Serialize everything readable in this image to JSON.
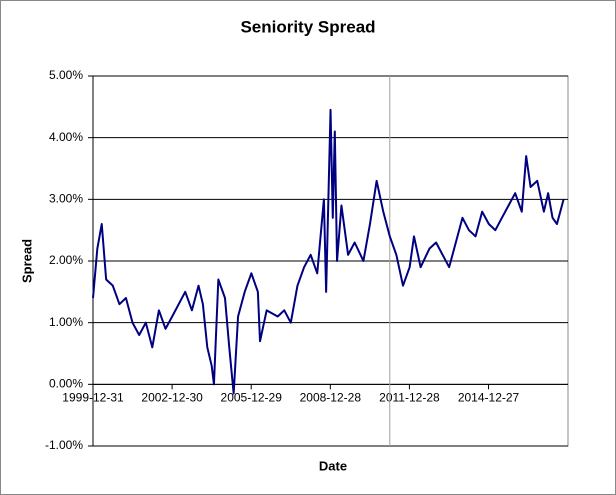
{
  "chart_data": {
    "type": "line",
    "title": "Seniority Spread",
    "x_label": "Date",
    "y_label": "Spread",
    "x": [
      "1999-12-31",
      "2000-02-29",
      "2000-04-30",
      "2000-06-30",
      "2000-09-30",
      "2000-12-31",
      "2001-03-31",
      "2001-06-30",
      "2001-09-30",
      "2001-12-31",
      "2002-03-31",
      "2002-06-30",
      "2002-09-30",
      "2002-12-31",
      "2003-03-31",
      "2003-06-30",
      "2003-09-30",
      "2003-12-31",
      "2004-02-29",
      "2004-04-30",
      "2004-06-30",
      "2004-07-31",
      "2004-09-30",
      "2004-12-31",
      "2005-02-28",
      "2005-04-30",
      "2005-06-30",
      "2005-09-30",
      "2005-12-31",
      "2006-03-31",
      "2006-04-30",
      "2006-07-31",
      "2006-12-31",
      "2007-03-31",
      "2007-06-30",
      "2007-09-30",
      "2007-12-31",
      "2008-03-31",
      "2008-06-30",
      "2008-09-30",
      "2008-10-31",
      "2008-12-31",
      "2009-01-31",
      "2009-02-28",
      "2009-03-31",
      "2009-05-31",
      "2009-08-31",
      "2009-11-30",
      "2010-03-31",
      "2010-06-30",
      "2010-09-30",
      "2010-12-31",
      "2011-03-31",
      "2011-06-30",
      "2011-09-30",
      "2011-12-31",
      "2012-02-29",
      "2012-05-31",
      "2012-09-30",
      "2012-12-31",
      "2013-03-31",
      "2013-06-30",
      "2013-09-30",
      "2013-12-31",
      "2014-03-31",
      "2014-06-30",
      "2014-09-30",
      "2014-12-31",
      "2015-03-31",
      "2015-06-30",
      "2015-09-30",
      "2015-12-31",
      "2016-03-31",
      "2016-05-31",
      "2016-07-31",
      "2016-10-31",
      "2017-01-31",
      "2017-03-31",
      "2017-05-31",
      "2017-07-31",
      "2017-10-31"
    ],
    "series": [
      {
        "color": "#000080",
        "values": [
          1.4,
          2.2,
          2.6,
          1.7,
          1.6,
          1.3,
          1.4,
          1.0,
          0.8,
          1.0,
          0.6,
          1.2,
          0.9,
          1.1,
          1.3,
          1.5,
          1.2,
          1.6,
          1.3,
          0.6,
          0.3,
          0.0,
          1.7,
          1.4,
          0.6,
          -0.15,
          1.1,
          1.5,
          1.8,
          1.5,
          0.7,
          1.2,
          1.1,
          1.2,
          1.0,
          1.6,
          1.9,
          2.1,
          1.8,
          3.0,
          1.5,
          4.45,
          2.7,
          4.1,
          2.0,
          2.9,
          2.1,
          2.3,
          2.0,
          2.6,
          3.3,
          2.8,
          2.4,
          2.1,
          1.6,
          1.9,
          2.4,
          1.9,
          2.2,
          2.3,
          2.1,
          1.9,
          2.3,
          2.7,
          2.5,
          2.4,
          2.8,
          2.6,
          2.5,
          2.7,
          2.9,
          3.1,
          2.8,
          3.7,
          3.2,
          3.3,
          2.8,
          3.1,
          2.7,
          2.6,
          3.0
        ]
      }
    ],
    "xlim": [
      "1999-12-31",
      "2017-12-31"
    ],
    "xticks": [
      "1999-12-31",
      "2002-12-30",
      "2005-12-29",
      "2008-12-28",
      "2011-12-28",
      "2014-12-27"
    ],
    "ylim": [
      -1,
      5
    ],
    "yticks": [
      {
        "value": -1,
        "label": "-1.00%"
      },
      {
        "value": 0,
        "label": "0.00%"
      },
      {
        "value": 1,
        "label": "1.00%"
      },
      {
        "value": 2,
        "label": "2.00%"
      },
      {
        "value": 3,
        "label": "3.00%"
      },
      {
        "value": 4,
        "label": "4.00%"
      },
      {
        "value": 5,
        "label": "5.00%"
      }
    ],
    "grid": true,
    "marker_line": {
      "x": "2011-03-31",
      "color": "#a0a0a0"
    }
  }
}
